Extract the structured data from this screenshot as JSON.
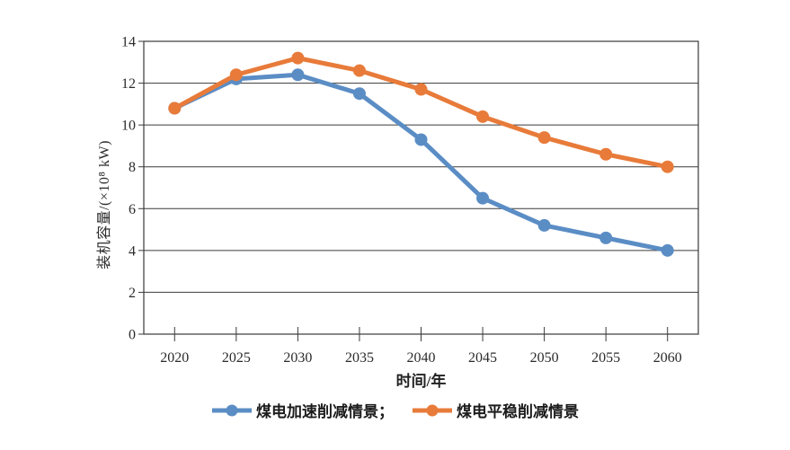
{
  "chart_data": {
    "type": "line",
    "title": "",
    "categories": [
      "2020",
      "2025",
      "2030",
      "2035",
      "2040",
      "2045",
      "2050",
      "2055",
      "2060"
    ],
    "series": [
      {
        "name": "煤电加速削减情景",
        "legend_label": "煤电加速削减情景；",
        "color": "#5b8dc5",
        "values": [
          10.8,
          12.2,
          12.4,
          11.5,
          9.3,
          6.5,
          5.2,
          4.6,
          4.0
        ]
      },
      {
        "name": "煤电平稳削减情景",
        "legend_label": "煤电平稳削减情景",
        "color": "#e87b3a",
        "values": [
          10.8,
          12.4,
          13.2,
          12.6,
          11.7,
          10.4,
          9.4,
          8.6,
          8.0
        ]
      }
    ],
    "xlabel": "时间/年",
    "ylabel": "装机容量/(×10⁸ kW)",
    "ylim": [
      0,
      14
    ],
    "yticks": [
      0,
      2,
      4,
      6,
      8,
      10,
      12,
      14
    ],
    "grid": true,
    "legend_position": "bottom",
    "axis_color": "#3a3a3a",
    "marker": "circle"
  }
}
